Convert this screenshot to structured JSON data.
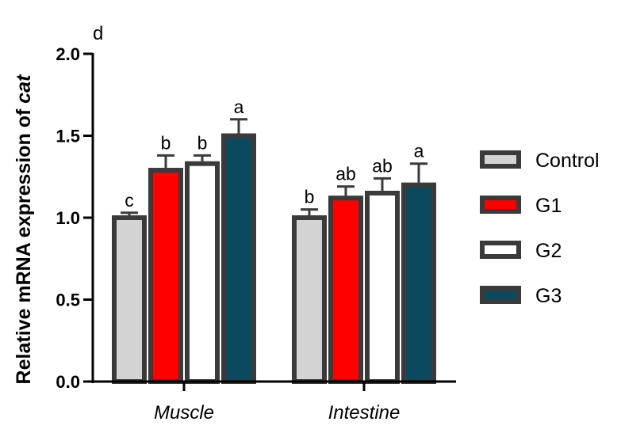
{
  "chart_data": {
    "type": "bar",
    "panel_label": "d",
    "ylabel_prefix": "Relative mRNA expression of ",
    "ylabel_gene": "cat",
    "ylim": [
      0,
      2.0
    ],
    "yticks": [
      0.0,
      0.5,
      1.0,
      1.5,
      2.0
    ],
    "ytick_labels": [
      "0.0",
      "0.5",
      "1.0",
      "1.5",
      "2.0"
    ],
    "categories": [
      "Muscle",
      "Intestine"
    ],
    "series": [
      {
        "name": "Control",
        "color": "#d3d3d3",
        "values": [
          1.0,
          1.0
        ],
        "errors": [
          0.03,
          0.05
        ],
        "letters": [
          "c",
          "b"
        ]
      },
      {
        "name": "G1",
        "color": "#ff0000",
        "values": [
          1.29,
          1.12
        ],
        "errors": [
          0.09,
          0.07
        ],
        "letters": [
          "b",
          "ab"
        ]
      },
      {
        "name": "G2",
        "color": "#ffffff",
        "values": [
          1.33,
          1.15
        ],
        "errors": [
          0.05,
          0.09
        ],
        "letters": [
          "b",
          "ab"
        ]
      },
      {
        "name": "G3",
        "color": "#0b4a5e",
        "values": [
          1.5,
          1.2
        ],
        "errors": [
          0.1,
          0.13
        ],
        "letters": [
          "a",
          "a"
        ]
      }
    ],
    "legend_position": "right"
  }
}
